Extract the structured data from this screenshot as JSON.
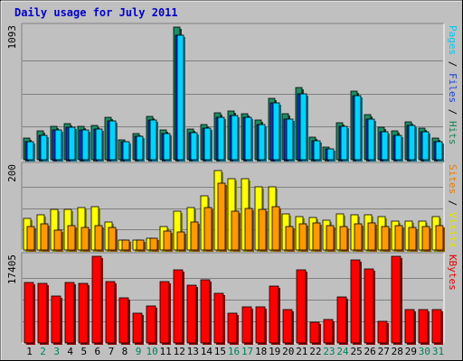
{
  "chart_data": {
    "type": "bar",
    "title": "Daily usage for July 2011",
    "days": [
      "1",
      "2",
      "3",
      "4",
      "5",
      "6",
      "7",
      "8",
      "9",
      "10",
      "11",
      "12",
      "13",
      "14",
      "15",
      "16",
      "17",
      "18",
      "19",
      "20",
      "21",
      "22",
      "23",
      "24",
      "25",
      "26",
      "27",
      "28",
      "29",
      "30",
      "31"
    ],
    "weekend_days": [
      2,
      3,
      9,
      10,
      16,
      17,
      23,
      24,
      30,
      31
    ],
    "panels": [
      {
        "id": "pages-files-hits",
        "max_label": "1093",
        "max": 1093,
        "series": [
          {
            "name": "Hits",
            "color": "#1e8c64",
            "values": [
              181,
              236,
              278,
              299,
              272,
              284,
              352,
              164,
              219,
              360,
              245,
              1093,
              252,
              288,
              388,
              400,
              380,
              327,
              508,
              376,
              592,
              183,
              107,
              306,
              563,
              374,
              267,
              236,
              311,
              260,
              179
            ]
          },
          {
            "name": "Files",
            "color": "#1b34c8",
            "values": [
              151,
              201,
              245,
              268,
              242,
              253,
              318,
              145,
              191,
              330,
              212,
              1028,
              226,
              258,
              353,
              368,
              347,
              289,
              466,
              337,
              546,
              154,
              86,
              275,
              527,
              337,
              231,
              201,
              284,
              231,
              149
            ]
          },
          {
            "name": "Pages",
            "color": "#00d4ff",
            "values": [
              151,
              201,
              245,
              268,
              242,
              253,
              318,
              145,
              191,
              330,
              212,
              1028,
              226,
              258,
              353,
              368,
              347,
              289,
              466,
              337,
              546,
              154,
              86,
              275,
              527,
              337,
              231,
              201,
              284,
              231,
              149
            ]
          }
        ],
        "legend": [
          {
            "text": "Pages",
            "color": "#00c8f0"
          },
          {
            "text": " / ",
            "color": "#000000"
          },
          {
            "text": "Files",
            "color": "#1f3fd0"
          },
          {
            "text": " / ",
            "color": "#000000"
          },
          {
            "text": "Hits",
            "color": "#1a8050"
          }
        ]
      },
      {
        "id": "sites-visits",
        "max_label": "200",
        "max": 200,
        "series": [
          {
            "name": "Visits",
            "color": "#ffff00",
            "values": [
              76,
              84,
              96,
              97,
              101,
              103,
              66,
              24,
              24,
              28,
              56,
              93,
              102,
              128,
              190,
              170,
              170,
              150,
              150,
              86,
              80,
              77,
              72,
              87,
              83,
              83,
              80,
              69,
              69,
              69,
              79
            ]
          },
          {
            "name": "Sites",
            "color": "#ff9900",
            "values": [
              55,
              62,
              47,
              58,
              54,
              59,
              53,
              24,
              24,
              28,
              45,
              44,
              67,
              101,
              160,
              92,
              98,
              97,
              103,
              56,
              62,
              64,
              58,
              56,
              63,
              64,
              56,
              58,
              54,
              56,
              58
            ]
          }
        ],
        "legend": [
          {
            "text": "Sites",
            "color": "#e87a00"
          },
          {
            "text": " / ",
            "color": "#000000"
          },
          {
            "text": "Visits",
            "color": "#e0e000"
          }
        ]
      },
      {
        "id": "kbytes",
        "max_label": "17405",
        "max": 17405,
        "series": [
          {
            "name": "KBytes",
            "color": "#ff0000",
            "values": [
              12150,
              11995,
              9380,
              12085,
              12035,
              17405,
              12380,
              9025,
              5970,
              7390,
              12310,
              14765,
              11645,
              12690,
              9895,
              5990,
              7220,
              7275,
              11445,
              6710,
              14615,
              4225,
              4795,
              9165,
              16700,
              14940,
              4405,
              17405,
              6770,
              6715,
              6720
            ]
          }
        ],
        "legend": [
          {
            "text": "KBytes",
            "color": "#e00000"
          }
        ]
      }
    ]
  }
}
